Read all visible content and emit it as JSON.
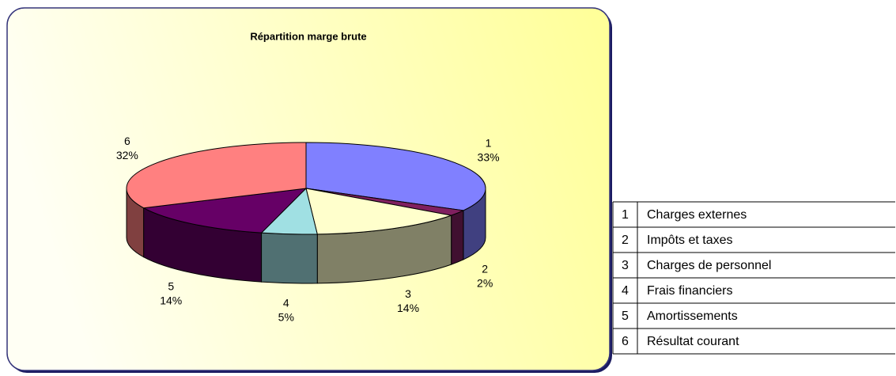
{
  "chart_data": {
    "type": "pie3d",
    "title": "Répartition marge brute",
    "categories": [
      "1",
      "2",
      "3",
      "4",
      "5",
      "6"
    ],
    "names": [
      "Charges externes",
      "Impôts et taxes",
      "Charges de personnel",
      "Frais financiers",
      "Amortissements",
      "Résultat courant"
    ],
    "values": [
      33,
      2,
      14,
      5,
      14,
      32
    ],
    "value_labels": [
      "33%",
      "2%",
      "14%",
      "5%",
      "14%",
      "32%"
    ],
    "colors": [
      "#8080ff",
      "#802060",
      "#ffffcc",
      "#a0e0e3",
      "#660066",
      "#ff8080"
    ]
  }
}
